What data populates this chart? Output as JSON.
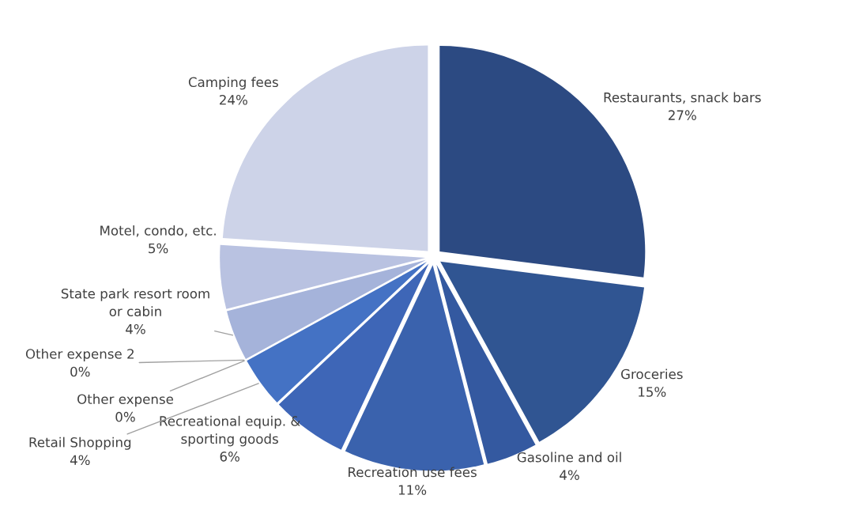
{
  "chart_data": {
    "type": "pie",
    "categories": [
      "Restaurants, snack bars",
      "Groceries",
      "Gasoline and oil",
      "Recreation use fees",
      "Recreational equip. & sporting goods",
      "Retail Shopping",
      "Other expense",
      "Other expense 2",
      "State park resort room or cabin",
      "Motel, condo, etc.",
      "Camping fees"
    ],
    "values": [
      27,
      15,
      4,
      11,
      6,
      4,
      0,
      0,
      4,
      5,
      24
    ],
    "colors": [
      "#2c4a82",
      "#305592",
      "#3459a0",
      "#3a62ad",
      "#3e66b7",
      "#4472c4",
      "#4472c4",
      "#4472c4",
      "#a5b3da",
      "#b9c2e1",
      "#cdd3e8"
    ],
    "value_labels": [
      "27%",
      "15%",
      "4%",
      "11%",
      "6%",
      "4%",
      "0%",
      "0%",
      "4%",
      "5%",
      "24%"
    ],
    "legend": false
  }
}
